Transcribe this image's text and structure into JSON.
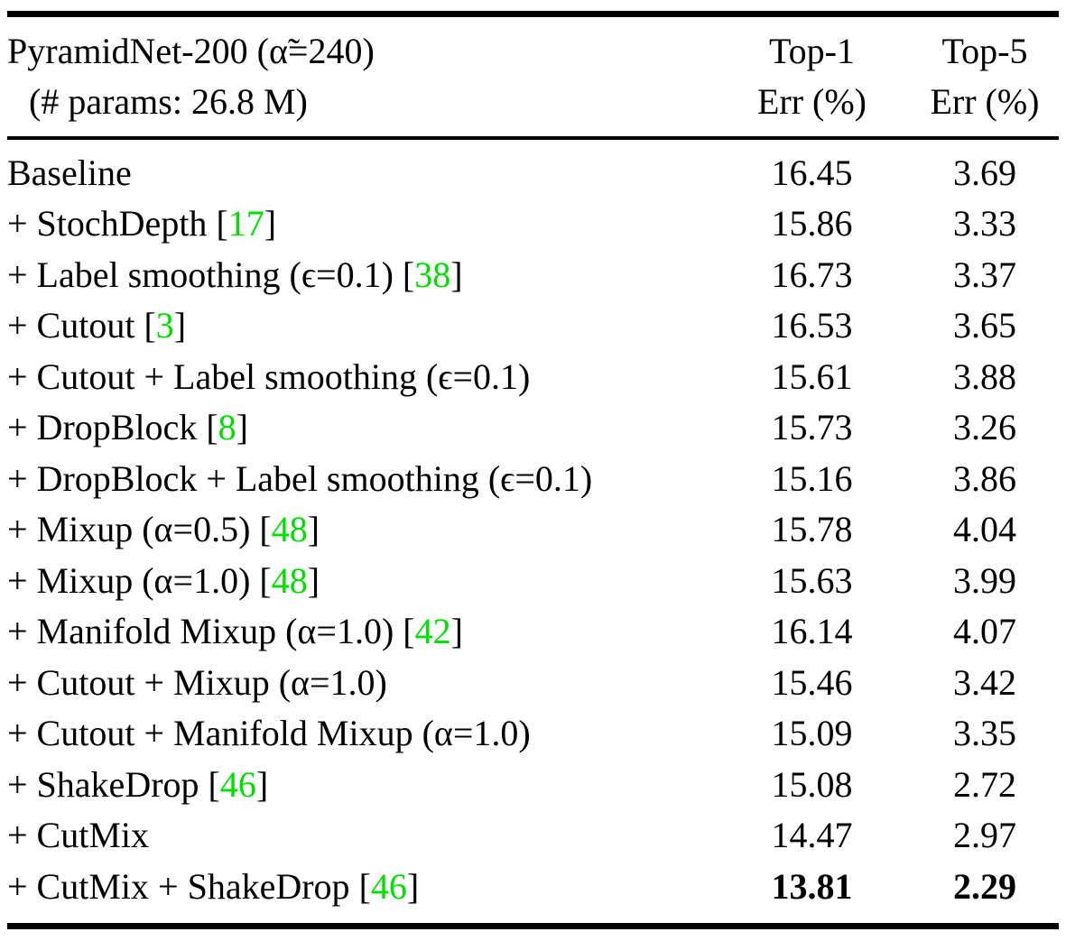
{
  "colors": {
    "citation": "#00e000",
    "text": "#000000",
    "background": "#ffffff"
  },
  "table": {
    "title_line1": "PyramidNet-200 (α̃=240)",
    "title_line2": "(# params: 26.8 M)",
    "columns": [
      {
        "line1": "Top-1",
        "line2": "Err (%)"
      },
      {
        "line1": "Top-5",
        "line2": "Err (%)"
      }
    ],
    "rows": [
      {
        "label": "Baseline",
        "cite_open": "",
        "cite": "",
        "cite_close": "",
        "top1": "16.45",
        "top5": "3.69",
        "bold": false
      },
      {
        "label": "+ StochDepth",
        "cite_open": " [",
        "cite": "17",
        "cite_close": "]",
        "top1": "15.86",
        "top5": "3.33",
        "bold": false
      },
      {
        "label": "+ Label smoothing (ϵ=0.1)",
        "cite_open": " [",
        "cite": "38",
        "cite_close": "]",
        "top1": "16.73",
        "top5": "3.37",
        "bold": false
      },
      {
        "label": "+ Cutout",
        "cite_open": " [",
        "cite": "3",
        "cite_close": "]",
        "top1": "16.53",
        "top5": "3.65",
        "bold": false
      },
      {
        "label": "+ Cutout + Label smoothing (ϵ=0.1)",
        "cite_open": "",
        "cite": "",
        "cite_close": "",
        "top1": "15.61",
        "top5": "3.88",
        "bold": false
      },
      {
        "label": "+ DropBlock",
        "cite_open": " [",
        "cite": "8",
        "cite_close": "]",
        "top1": "15.73",
        "top5": "3.26",
        "bold": false
      },
      {
        "label": "+ DropBlock + Label smoothing (ϵ=0.1)",
        "cite_open": "",
        "cite": "",
        "cite_close": "",
        "top1": "15.16",
        "top5": "3.86",
        "bold": false
      },
      {
        "label": "+ Mixup (α=0.5)",
        "cite_open": " [",
        "cite": "48",
        "cite_close": "]",
        "top1": "15.78",
        "top5": "4.04",
        "bold": false
      },
      {
        "label": "+ Mixup (α=1.0)",
        "cite_open": " [",
        "cite": "48",
        "cite_close": "]",
        "top1": "15.63",
        "top5": "3.99",
        "bold": false
      },
      {
        "label": "+ Manifold Mixup (α=1.0)",
        "cite_open": " [",
        "cite": "42",
        "cite_close": "]",
        "top1": "16.14",
        "top5": "4.07",
        "bold": false
      },
      {
        "label": "+ Cutout + Mixup (α=1.0)",
        "cite_open": "",
        "cite": "",
        "cite_close": "",
        "top1": "15.46",
        "top5": "3.42",
        "bold": false
      },
      {
        "label": "+ Cutout + Manifold Mixup (α=1.0)",
        "cite_open": "",
        "cite": "",
        "cite_close": "",
        "top1": "15.09",
        "top5": "3.35",
        "bold": false
      },
      {
        "label": "+ ShakeDrop",
        "cite_open": " [",
        "cite": "46",
        "cite_close": "]",
        "top1": "15.08",
        "top5": "2.72",
        "bold": false
      },
      {
        "label": "+ CutMix",
        "cite_open": "",
        "cite": "",
        "cite_close": "",
        "top1": "14.47",
        "top5": "2.97",
        "bold": false
      },
      {
        "label": "+ CutMix + ShakeDrop",
        "cite_open": " [",
        "cite": "46",
        "cite_close": "]",
        "top1": "13.81",
        "top5": "2.29",
        "bold": true
      }
    ]
  }
}
